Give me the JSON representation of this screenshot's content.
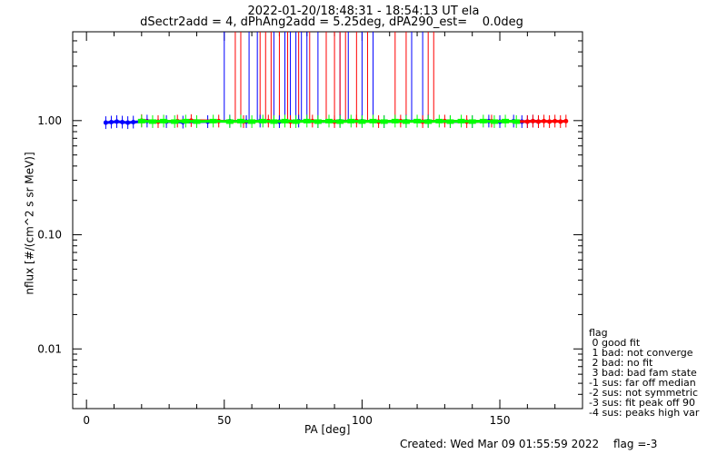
{
  "chart_data": {
    "type": "scatter",
    "title": "2022-01-20/18:48:31 - 18:54:13 UT ela",
    "subtitle": "dSectr2add = 4, dPhAng2add = 5.25deg, dPA290_est=    0.0deg",
    "xlabel": "PA [deg]",
    "ylabel": "nflux [#/(cm^2 s sr MeV)]",
    "xlim": [
      -5,
      180
    ],
    "ylim": [
      0.003,
      6
    ],
    "yscale": "log",
    "x_ticks": [
      0,
      50,
      100,
      150
    ],
    "x_tick_labels": [
      "0",
      "50",
      "100",
      "150"
    ],
    "y_ticks": [
      0.01,
      0.1,
      1.0
    ],
    "y_tick_labels": [
      "0.01",
      "0.10",
      "1.00"
    ],
    "series": [
      {
        "color": "#0000ff",
        "x": [
          7,
          9,
          11,
          13,
          15,
          17,
          22,
          29,
          35,
          44,
          52,
          58,
          63,
          70,
          77,
          84,
          92,
          100,
          108,
          116,
          124,
          132,
          140,
          146,
          150,
          155,
          158,
          160,
          162,
          164
        ],
        "y": [
          0.96,
          0.97,
          0.98,
          0.97,
          0.96,
          0.97,
          0.99,
          0.98,
          0.97,
          0.98,
          0.99,
          0.98,
          0.99,
          0.98,
          0.99,
          0.98,
          0.99,
          0.99,
          0.98,
          0.99,
          0.99,
          0.98,
          0.98,
          0.99,
          0.98,
          0.99,
          0.98,
          0.98,
          0.99,
          0.98
        ]
      },
      {
        "color": "#ff0000",
        "x": [
          20,
          26,
          33,
          38,
          48,
          57,
          66,
          74,
          82,
          90,
          98,
          106,
          114,
          122,
          130,
          138,
          147,
          160,
          162,
          164,
          166,
          168,
          170,
          172,
          174
        ],
        "y": [
          1.0,
          0.98,
          0.99,
          1.0,
          0.99,
          0.98,
          0.99,
          0.98,
          0.99,
          0.98,
          0.99,
          0.98,
          0.99,
          0.98,
          0.99,
          0.98,
          0.99,
          0.98,
          0.99,
          0.98,
          0.99,
          0.98,
          0.99,
          0.98,
          0.99
        ]
      },
      {
        "color": "#00ff00",
        "x": [
          20,
          24,
          28,
          32,
          36,
          40,
          46,
          52,
          56,
          60,
          64,
          68,
          72,
          76,
          80,
          84,
          88,
          92,
          96,
          100,
          104,
          108,
          112,
          116,
          120,
          124,
          128,
          132,
          136,
          140,
          144,
          148,
          152,
          156
        ],
        "y": [
          0.99,
          0.98,
          0.99,
          0.98,
          0.99,
          0.98,
          0.99,
          0.98,
          0.99,
          0.98,
          0.99,
          0.98,
          0.99,
          0.98,
          0.99,
          0.98,
          0.99,
          0.98,
          0.99,
          0.98,
          0.99,
          0.98,
          0.99,
          0.98,
          0.99,
          0.98,
          0.99,
          0.98,
          0.99,
          0.98,
          0.99,
          0.98,
          0.99,
          0.98
        ]
      }
    ],
    "spikes": [
      {
        "color": "#0000ff",
        "x": [
          50,
          59,
          62,
          68,
          72,
          74,
          76,
          78,
          80,
          84,
          92,
          95,
          100,
          104,
          118,
          122
        ]
      },
      {
        "color": "#ff0000",
        "x": [
          54,
          56,
          63,
          65,
          67,
          70,
          73,
          77,
          81,
          87,
          90,
          92,
          94,
          98,
          102,
          112,
          116,
          124,
          126
        ]
      }
    ],
    "legend": {
      "title": "flag",
      "entries": [
        " 0 good fit",
        " 1 bad: not converge",
        " 2 bad: no fit",
        " 3 bad: bad fam state",
        "-1 sus: far off median",
        "-2 sus: not symmetric",
        "-3 sus: fit peak off 90",
        "-4 sus: peaks high var"
      ],
      "placement": "right, outside plot"
    }
  },
  "footer": {
    "created": "Created: Wed Mar 09 01:55:59 2022",
    "flag": "flag =-3"
  }
}
